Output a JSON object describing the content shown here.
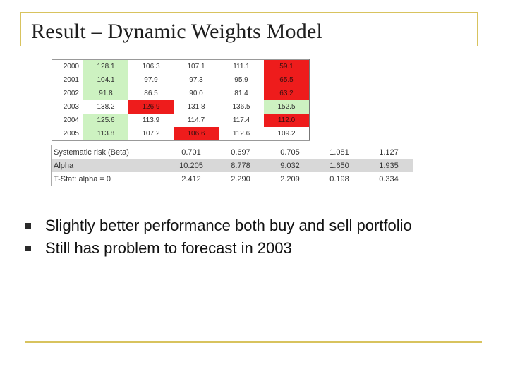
{
  "title": "Result – Dynamic Weights Model",
  "colors": {
    "frame": "#d8c35e",
    "green_cell": "#cdf2c1",
    "red_cell": "#ee1c1c",
    "shaded_row": "#d8d8d8"
  },
  "top_table": {
    "rows": [
      {
        "year": "2000",
        "cells": [
          {
            "v": "128.1",
            "c": "g"
          },
          {
            "v": "106.3",
            "c": ""
          },
          {
            "v": "107.1",
            "c": ""
          },
          {
            "v": "111.1",
            "c": ""
          },
          {
            "v": "59.1",
            "c": "r"
          }
        ]
      },
      {
        "year": "2001",
        "cells": [
          {
            "v": "104.1",
            "c": "g"
          },
          {
            "v": "97.9",
            "c": ""
          },
          {
            "v": "97.3",
            "c": ""
          },
          {
            "v": "95.9",
            "c": ""
          },
          {
            "v": "65.5",
            "c": "r"
          }
        ]
      },
      {
        "year": "2002",
        "cells": [
          {
            "v": "91.8",
            "c": "g"
          },
          {
            "v": "86.5",
            "c": ""
          },
          {
            "v": "90.0",
            "c": ""
          },
          {
            "v": "81.4",
            "c": ""
          },
          {
            "v": "63.2",
            "c": "r"
          }
        ]
      },
      {
        "year": "2003",
        "cells": [
          {
            "v": "138.2",
            "c": ""
          },
          {
            "v": "126.9",
            "c": "r"
          },
          {
            "v": "131.8",
            "c": ""
          },
          {
            "v": "136.5",
            "c": ""
          },
          {
            "v": "152.5",
            "c": "g"
          }
        ]
      },
      {
        "year": "2004",
        "cells": [
          {
            "v": "125.6",
            "c": "g"
          },
          {
            "v": "113.9",
            "c": ""
          },
          {
            "v": "114.7",
            "c": ""
          },
          {
            "v": "117.4",
            "c": ""
          },
          {
            "v": "112.0",
            "c": "r"
          }
        ]
      },
      {
        "year": "2005",
        "cells": [
          {
            "v": "113.8",
            "c": "g"
          },
          {
            "v": "107.2",
            "c": ""
          },
          {
            "v": "106.6",
            "c": "r"
          },
          {
            "v": "112.6",
            "c": ""
          },
          {
            "v": "109.2",
            "c": ""
          }
        ]
      }
    ]
  },
  "stats_table": {
    "rows": [
      {
        "label": "Systematic risk (Beta)",
        "values": [
          "0.701",
          "0.697",
          "0.705",
          "1.081",
          "1.127"
        ],
        "shaded": false
      },
      {
        "label": "Alpha",
        "values": [
          "10.205",
          "8.778",
          "9.032",
          "1.650",
          "1.935"
        ],
        "shaded": true
      },
      {
        "label": "T-Stat: alpha = 0",
        "values": [
          "2.412",
          "2.290",
          "2.209",
          "0.198",
          "0.334"
        ],
        "shaded": false
      }
    ]
  },
  "bullets": [
    "Slightly better performance both buy and sell portfolio",
    "Still has problem to forecast in 2003"
  ]
}
